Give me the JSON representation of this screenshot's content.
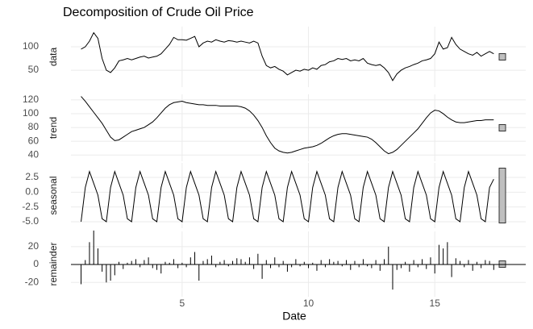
{
  "chart_data": {
    "type": "line",
    "title": "Decomposition of Crude Oil Price",
    "x_label": "Date",
    "xlim": [
      0.6,
      18.6
    ],
    "xticks": [
      5,
      10,
      15
    ],
    "grid": true,
    "color": "#000000",
    "x": [
      1,
      1.167,
      1.333,
      1.5,
      1.667,
      1.833,
      2,
      2.167,
      2.333,
      2.5,
      2.667,
      2.833,
      3,
      3.167,
      3.333,
      3.5,
      3.667,
      3.833,
      4,
      4.167,
      4.333,
      4.5,
      4.667,
      4.833,
      5,
      5.167,
      5.333,
      5.5,
      5.667,
      5.833,
      6,
      6.167,
      6.333,
      6.5,
      6.667,
      6.833,
      7,
      7.167,
      7.333,
      7.5,
      7.667,
      7.833,
      8,
      8.167,
      8.333,
      8.5,
      8.667,
      8.833,
      9,
      9.167,
      9.333,
      9.5,
      9.667,
      9.833,
      10,
      10.167,
      10.333,
      10.5,
      10.667,
      10.833,
      11,
      11.167,
      11.333,
      11.5,
      11.667,
      11.833,
      12,
      12.167,
      12.333,
      12.5,
      12.667,
      12.833,
      13,
      13.167,
      13.333,
      13.5,
      13.667,
      13.833,
      14,
      14.167,
      14.333,
      14.5,
      14.667,
      14.833,
      15,
      15.167,
      15.333,
      15.5,
      15.667,
      15.833,
      16,
      16.167,
      16.333,
      16.5,
      16.667,
      16.833,
      17,
      17.167,
      17.333
    ],
    "panels": [
      {
        "label": "data",
        "type": "line",
        "ylim": [
          14,
          143
        ],
        "yticks": [
          50,
          100
        ],
        "values": [
          95,
          100,
          112,
          130,
          118,
          75,
          50,
          45,
          55,
          70,
          72,
          75,
          72,
          75,
          78,
          80,
          76,
          78,
          80,
          85,
          95,
          105,
          120,
          115,
          115,
          114,
          118,
          122,
          100,
          108,
          112,
          110,
          115,
          112,
          110,
          113,
          112,
          110,
          112,
          110,
          108,
          112,
          108,
          80,
          60,
          55,
          58,
          52,
          48,
          40,
          45,
          50,
          48,
          52,
          50,
          55,
          52,
          60,
          62,
          68,
          70,
          75,
          73,
          75,
          70,
          72,
          70,
          75,
          65,
          62,
          60,
          62,
          55,
          45,
          28,
          42,
          50,
          55,
          58,
          62,
          65,
          70,
          72,
          75,
          85,
          110,
          95,
          98,
          120,
          105,
          95,
          90,
          85,
          82,
          88,
          80,
          85,
          90,
          85
        ]
      },
      {
        "label": "trend",
        "type": "line",
        "ylim": [
          31,
          128
        ],
        "yticks": [
          40,
          60,
          80,
          100,
          120
        ],
        "values": [
          125,
          118,
          110,
          102,
          94,
          86,
          76,
          66,
          61,
          62,
          66,
          70,
          74,
          76,
          78,
          80,
          84,
          88,
          94,
          101,
          108,
          113,
          116,
          117,
          118,
          116,
          115,
          114,
          113,
          113,
          112,
          112,
          112,
          111,
          111,
          111,
          111,
          111,
          110,
          108,
          104,
          98,
          90,
          80,
          68,
          58,
          50,
          46,
          44,
          43,
          44,
          46,
          48,
          50,
          51,
          52,
          54,
          57,
          61,
          65,
          68,
          70,
          71,
          71,
          70,
          69,
          68,
          67,
          66,
          63,
          58,
          52,
          46,
          42,
          44,
          48,
          54,
          60,
          66,
          72,
          78,
          86,
          94,
          101,
          105,
          104,
          100,
          95,
          91,
          88,
          87,
          87,
          88,
          89,
          90,
          90,
          91,
          91,
          91
        ]
      },
      {
        "label": "seasonal",
        "type": "line",
        "ylim": [
          -6.1,
          4.96
        ],
        "yticks": [
          2.5,
          {
            "value": 0,
            "label": "0.0"
          },
          -2.5,
          {
            "value": -5,
            "label": "-5.0"
          }
        ],
        "values": [
          -5,
          0.8,
          3.5,
          1.5,
          -0.5,
          -4.5,
          -5,
          0.8,
          3.5,
          1.5,
          -0.5,
          -4.5,
          -5,
          0.8,
          3.5,
          1.5,
          -0.5,
          -4.5,
          -5,
          0.8,
          3.5,
          1.5,
          -0.5,
          -4.5,
          -5,
          0.8,
          3.5,
          1.5,
          -0.5,
          -4.5,
          -5,
          0.8,
          3.5,
          1.5,
          -0.5,
          -4.5,
          -5,
          0.8,
          3.5,
          1.5,
          -0.5,
          -4.5,
          -5,
          0.8,
          3.5,
          1.5,
          -0.5,
          -4.5,
          -5,
          0.8,
          3.5,
          1.5,
          -0.5,
          -4.5,
          -5,
          0.8,
          3.5,
          1.5,
          -0.5,
          -4.5,
          -5,
          0.8,
          3.5,
          1.5,
          -0.5,
          -4.5,
          -5,
          0.8,
          3.5,
          1.5,
          -0.5,
          -4.5,
          -5,
          0.8,
          3.5,
          1.5,
          -0.5,
          -4.5,
          -5,
          0.8,
          3.5,
          1.5,
          -0.5,
          -4.5,
          -5,
          0.8,
          3.5,
          1.5,
          -0.5,
          -4.5,
          -5,
          0.8,
          3.5,
          1.5,
          -0.5,
          -4.5,
          -5,
          0.8,
          2.2
        ]
      },
      {
        "label": "remainder",
        "type": "bar",
        "ylim": [
          -36,
          37
        ],
        "yticks": [
          20,
          0,
          -20
        ],
        "values": [
          -22,
          5,
          25,
          38,
          18,
          -8,
          -20,
          -18,
          -12,
          3,
          -5,
          2,
          4,
          6,
          -3,
          5,
          8,
          -4,
          -6,
          -10,
          3,
          2,
          6,
          -4,
          2,
          -3,
          8,
          14,
          -18,
          4,
          6,
          10,
          -3,
          3,
          5,
          -2,
          4,
          7,
          6,
          3,
          8,
          -5,
          12,
          -16,
          5,
          -4,
          8,
          -3,
          4,
          -8,
          -3,
          6,
          -2,
          3,
          -4,
          2,
          -7,
          5,
          -3,
          6,
          3,
          4,
          -2,
          5,
          -6,
          4,
          -3,
          6,
          -2,
          -4,
          5,
          -7,
          6,
          20,
          -28,
          -6,
          -4,
          3,
          -8,
          5,
          -3,
          6,
          -5,
          8,
          -10,
          22,
          18,
          25,
          -14,
          7,
          4,
          -3,
          5,
          -7,
          3,
          -4,
          5,
          4,
          -6
        ]
      }
    ]
  }
}
